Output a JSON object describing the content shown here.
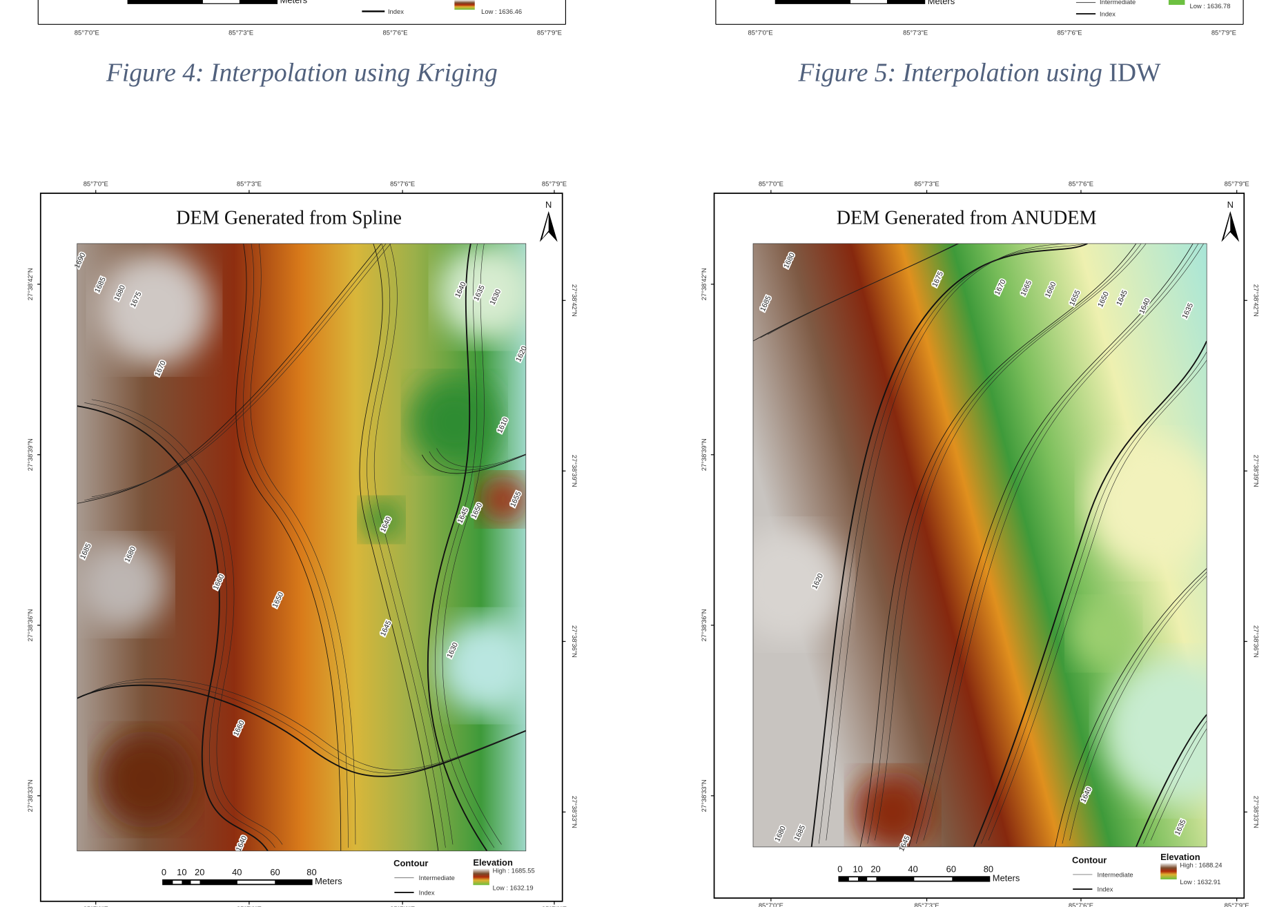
{
  "top_figures": [
    {
      "scale_unit": "Meters",
      "legend_items": [
        "Index"
      ],
      "legend_low": "Low : 1636.46",
      "lon_ticks": [
        "85°7'0\"E",
        "85°7'3\"E",
        "85°7'6\"E",
        "85°7'9\"E"
      ],
      "caption": "Figure 4: Interpolation using Kriging"
    },
    {
      "scale_unit": "Meters",
      "legend_items": [
        "Intermediate",
        "Index"
      ],
      "legend_low": "Low : 1636.78",
      "lon_ticks": [
        "85°7'0\"E",
        "85°7'3\"E",
        "85°7'6\"E",
        "85°7'9\"E"
      ],
      "caption": "Figure 5: Interpolation using",
      "caption_abbr": "IDW"
    }
  ],
  "maps": [
    {
      "title": "DEM Generated from Spline",
      "north": "N",
      "scale_ticks": [
        "0",
        "10",
        "20",
        "40",
        "60",
        "80"
      ],
      "scale_unit": "Meters",
      "contour_title": "Contour",
      "contour_items": [
        "Intermediate",
        "Index"
      ],
      "elevation_title": "Elevation",
      "high": "High : 1685.55",
      "low": "Low : 1632.19",
      "lon_ticks": [
        "85°7'0\"E",
        "85°7'3\"E",
        "85°7'6\"E",
        "85°7'9\"E"
      ],
      "lat_ticks": [
        "27°38'42\"N",
        "27°38'39\"N",
        "27°38'36\"N",
        "27°38'33\"N"
      ],
      "contour_labels": [
        "1690",
        "1685",
        "1680",
        "1675",
        "1670",
        "1640",
        "1635",
        "1630",
        "1620",
        "1610",
        "1655",
        "1650",
        "1645",
        "1640",
        "1685",
        "1680",
        "1660",
        "1650",
        "1645",
        "1630",
        "1660",
        "1640"
      ]
    },
    {
      "title": "DEM Generated from ANUDEM",
      "north": "N",
      "scale_ticks": [
        "0",
        "10",
        "20",
        "40",
        "60",
        "80"
      ],
      "scale_unit": "Meters",
      "contour_title": "Contour",
      "contour_items": [
        "Intermediate",
        "Index"
      ],
      "elevation_title": "Elevation",
      "high": "High : 1688.24",
      "low": "Low : 1632.91",
      "lon_ticks": [
        "85°7'0\"E",
        "85°7'3\"E",
        "85°7'6\"E",
        "85°7'9\"E"
      ],
      "lat_ticks": [
        "27°38'42\"N",
        "27°38'39\"N",
        "27°38'36\"N",
        "27°38'33\"N"
      ],
      "contour_labels": [
        "1680",
        "1675",
        "1670",
        "1665",
        "1660",
        "1655",
        "1650",
        "1645",
        "1640",
        "1635",
        "1685",
        "1620",
        "1640",
        "1635",
        "1685",
        "1680",
        "1645"
      ]
    }
  ]
}
